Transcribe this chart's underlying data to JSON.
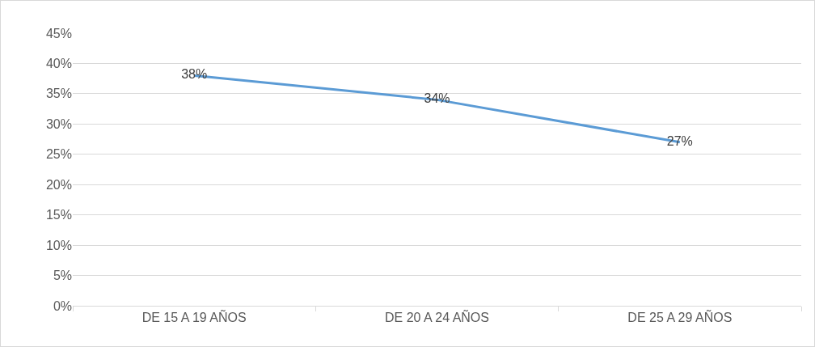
{
  "chart_data": {
    "type": "line",
    "categories": [
      "DE 15 A 19 AÑOS",
      "DE 20 A 24 AÑOS",
      "DE 25 A 29 AÑOS"
    ],
    "series": [
      {
        "color": "#5b9bd5",
        "values": [
          38,
          34,
          27
        ],
        "value_labels": [
          "38%",
          "34%",
          "27%"
        ]
      }
    ],
    "ylim": [
      0,
      45
    ],
    "yticks": [
      {
        "value": 0,
        "label": "0%"
      },
      {
        "value": 5,
        "label": "5%"
      },
      {
        "value": 10,
        "label": "10%"
      },
      {
        "value": 15,
        "label": "15%"
      },
      {
        "value": 20,
        "label": "20%"
      },
      {
        "value": 25,
        "label": "25%"
      },
      {
        "value": 30,
        "label": "30%"
      },
      {
        "value": 35,
        "label": "35%"
      },
      {
        "value": 40,
        "label": "40%"
      },
      {
        "value": 45,
        "label": "45%"
      }
    ],
    "grid": "y",
    "marker": "none",
    "line_style": "solid"
  }
}
